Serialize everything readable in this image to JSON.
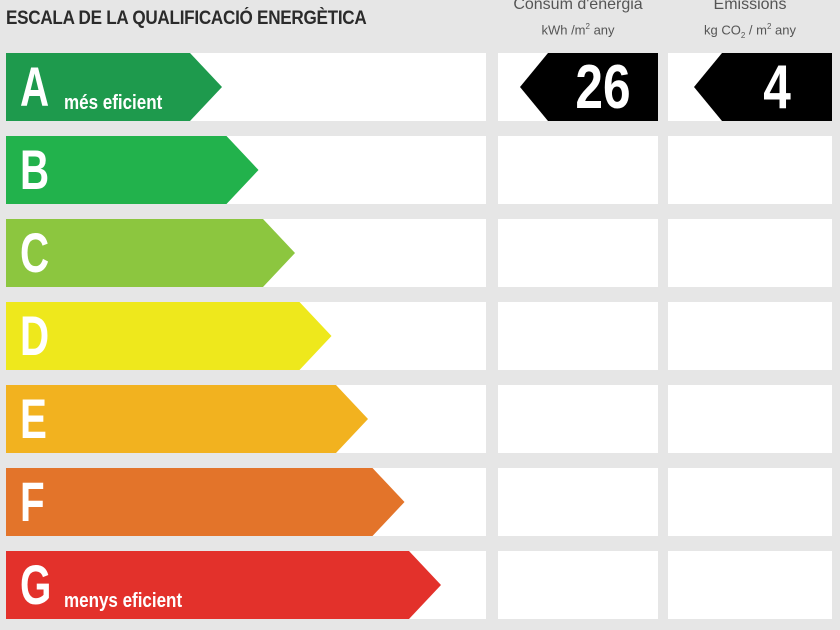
{
  "title": "ESCALA DE LA QUALIFICACIÓ ENERGÈTICA",
  "columns": {
    "consumption": {
      "label": "Consum d'energia",
      "unit_prefix": "kWh /m",
      "unit_sup": "2",
      "unit_suffix": " any"
    },
    "emissions": {
      "label": "Emissions",
      "unit_prefix": "kg CO",
      "unit_sub": "2",
      "unit_mid": " / m",
      "unit_sup": "2",
      "unit_suffix": " any"
    }
  },
  "chart_data": {
    "type": "table",
    "title": "ESCALA DE LA QUALIFICACIÓ ENERGÈTICA",
    "classes": [
      {
        "letter": "A",
        "note": "més eficient",
        "color": "#1e9a4d"
      },
      {
        "letter": "B",
        "note": "",
        "color": "#22b24c"
      },
      {
        "letter": "C",
        "note": "",
        "color": "#8cc63f"
      },
      {
        "letter": "D",
        "note": "",
        "color": "#eee81c"
      },
      {
        "letter": "E",
        "note": "",
        "color": "#f2b21f"
      },
      {
        "letter": "F",
        "note": "",
        "color": "#e3742a"
      },
      {
        "letter": "G",
        "note": "menys eficient",
        "color": "#e3312b"
      }
    ],
    "consumption": {
      "value": "26",
      "class": "A"
    },
    "emissions": {
      "value": "4",
      "class": "A"
    }
  }
}
